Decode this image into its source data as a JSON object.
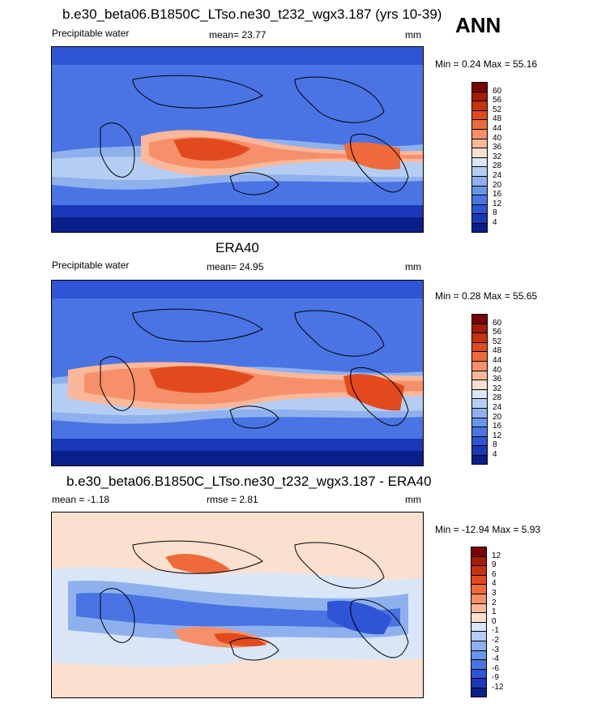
{
  "header": {
    "season": "ANN"
  },
  "panels": [
    {
      "id": "model",
      "title": "b.e30_beta06.B1850C_LTso.ne30_t232_wgx3.187 (yrs 10-39)",
      "left_label": "Precipitable water",
      "center_label": "mean=  23.77",
      "units": "mm",
      "minmax": "Min =   0.24 Max =   55.16",
      "colorbar": {
        "ticks": [
          "60",
          "56",
          "52",
          "48",
          "44",
          "40",
          "36",
          "32",
          "28",
          "24",
          "20",
          "16",
          "12",
          "8",
          "4"
        ],
        "colors": [
          "#7a0403",
          "#a61b06",
          "#c8330f",
          "#e24a1d",
          "#ef6a3a",
          "#f6906a",
          "#fbb79a",
          "#fbe0cf",
          "#d9e6f8",
          "#b5cdf3",
          "#8eb1ee",
          "#6a93ea",
          "#4a74e4",
          "#2f55d6",
          "#1a39b8",
          "#0b1f8a"
        ]
      }
    },
    {
      "id": "obs",
      "title": "ERA40",
      "left_label": "Precipitable water",
      "center_label": "mean=  24.95",
      "units": "mm",
      "minmax": "Min =   0.28 Max =   55.65",
      "colorbar": {
        "ticks": [
          "60",
          "56",
          "52",
          "48",
          "44",
          "40",
          "36",
          "32",
          "28",
          "24",
          "20",
          "16",
          "12",
          "8",
          "4"
        ],
        "colors": [
          "#7a0403",
          "#a61b06",
          "#c8330f",
          "#e24a1d",
          "#ef6a3a",
          "#f6906a",
          "#fbb79a",
          "#fbe0cf",
          "#d9e6f8",
          "#b5cdf3",
          "#8eb1ee",
          "#6a93ea",
          "#4a74e4",
          "#2f55d6",
          "#1a39b8",
          "#0b1f8a"
        ]
      }
    },
    {
      "id": "diff",
      "title": "b.e30_beta06.B1850C_LTso.ne30_t232_wgx3.187 - ERA40",
      "left_label": "mean =   -1.18",
      "center_label": "rmse =   2.81",
      "units": "mm",
      "minmax": "Min = -12.94 Max =    5.93",
      "colorbar": {
        "ticks": [
          "12",
          "9",
          "6",
          "4",
          "3",
          "2",
          "1",
          "0",
          "-1",
          "-2",
          "-3",
          "-4",
          "-6",
          "-9",
          "-12"
        ],
        "colors": [
          "#7a0403",
          "#a61b06",
          "#c8330f",
          "#e24a1d",
          "#ef6a3a",
          "#f6906a",
          "#fbb79a",
          "#fbe0cf",
          "#d9e6f8",
          "#b5cdf3",
          "#8eb1ee",
          "#6a93ea",
          "#4a74e4",
          "#2f55d6",
          "#1a39b8",
          "#0b1f8a"
        ]
      }
    }
  ]
}
